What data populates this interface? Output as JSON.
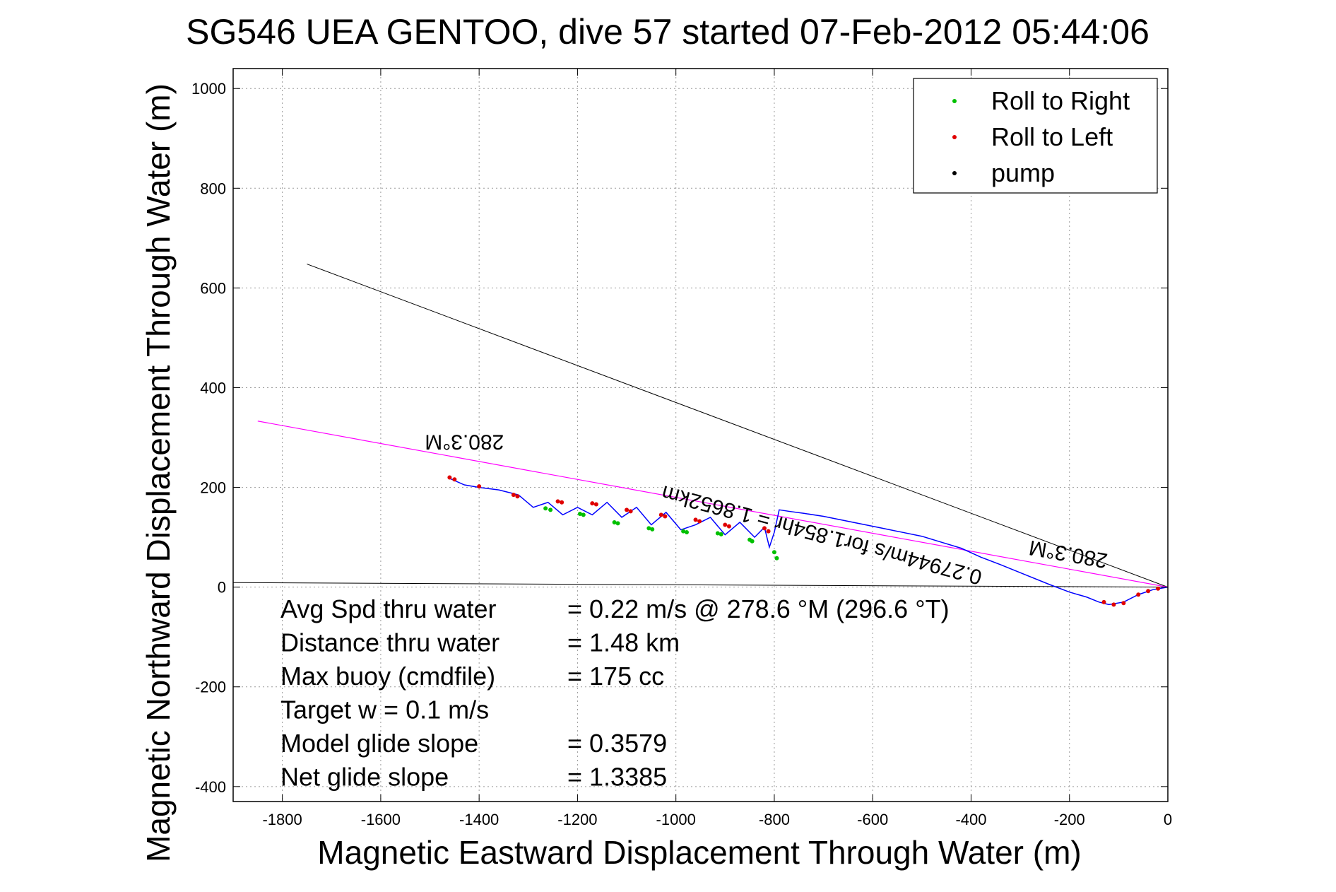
{
  "chart_data": {
    "type": "line",
    "title": "SG546 UEA GENTOO, dive 57 started 07-Feb-2012 05:44:06",
    "xlabel": "Magnetic Eastward Displacement Through Water (m)",
    "ylabel": "Magnetic Northward Displacement Through Water (m)",
    "xlim": [
      -1900,
      0
    ],
    "ylim": [
      -430,
      1040
    ],
    "xticks": [
      -1800,
      -1600,
      -1400,
      -1200,
      -1000,
      -800,
      -600,
      -400,
      -200,
      0
    ],
    "yticks": [
      -400,
      -200,
      0,
      200,
      400,
      600,
      800,
      1000
    ],
    "grid": true,
    "legend": {
      "position": "top-right",
      "entries": [
        {
          "label": "Roll to Right",
          "color": "#00c000"
        },
        {
          "label": "Roll to Left",
          "color": "#e00000"
        },
        {
          "label": "pump",
          "color": "#000000"
        }
      ]
    },
    "colors": {
      "track": "#0000ff",
      "heading_line": "#ff00ff",
      "current_line": "#000000",
      "zero_line": "#000000"
    },
    "lines": {
      "heading": {
        "x": [
          -1850,
          0
        ],
        "y": [
          333,
          0
        ],
        "label": "280.3°M"
      },
      "current": {
        "x": [
          -1750,
          0
        ],
        "y": [
          648,
          0
        ]
      },
      "zero": {
        "x": [
          -1900,
          0
        ],
        "y": [
          9,
          0
        ]
      }
    },
    "track": {
      "x": [
        0,
        -30,
        -60,
        -90,
        -120,
        -140,
        -165,
        -200,
        -240,
        -290,
        -340,
        -380,
        -420,
        -460,
        -500,
        -540,
        -580,
        -620,
        -660,
        -700,
        -740,
        -770,
        -790,
        -800,
        -810,
        -820,
        -840,
        -870,
        -900,
        -930,
        -960,
        -990,
        -1020,
        -1050,
        -1080,
        -1110,
        -1140,
        -1170,
        -1200,
        -1230,
        -1260,
        -1290,
        -1320,
        -1360,
        -1400,
        -1430,
        -1460
      ],
      "y": [
        0,
        -5,
        -15,
        -30,
        -35,
        -30,
        -20,
        -10,
        5,
        25,
        45,
        60,
        78,
        90,
        102,
        110,
        118,
        126,
        134,
        142,
        148,
        152,
        155,
        110,
        80,
        120,
        100,
        130,
        105,
        140,
        125,
        115,
        150,
        125,
        160,
        140,
        170,
        145,
        160,
        145,
        170,
        160,
        185,
        195,
        200,
        205,
        218
      ]
    },
    "roll_right": [
      {
        "x": -1265,
        "y": 158
      },
      {
        "x": -1255,
        "y": 155
      },
      {
        "x": -1195,
        "y": 147
      },
      {
        "x": -1188,
        "y": 145
      },
      {
        "x": -1125,
        "y": 130
      },
      {
        "x": -1118,
        "y": 128
      },
      {
        "x": -1055,
        "y": 118
      },
      {
        "x": -1048,
        "y": 116
      },
      {
        "x": -985,
        "y": 112
      },
      {
        "x": -978,
        "y": 110
      },
      {
        "x": -915,
        "y": 108
      },
      {
        "x": -908,
        "y": 106
      },
      {
        "x": -850,
        "y": 95
      },
      {
        "x": -845,
        "y": 92
      },
      {
        "x": -800,
        "y": 70
      },
      {
        "x": -795,
        "y": 58
      }
    ],
    "roll_left": [
      {
        "x": -1460,
        "y": 220
      },
      {
        "x": -1450,
        "y": 216
      },
      {
        "x": -1400,
        "y": 202
      },
      {
        "x": -1330,
        "y": 185
      },
      {
        "x": -1322,
        "y": 182
      },
      {
        "x": -1240,
        "y": 172
      },
      {
        "x": -1232,
        "y": 170
      },
      {
        "x": -1170,
        "y": 168
      },
      {
        "x": -1162,
        "y": 166
      },
      {
        "x": -1100,
        "y": 155
      },
      {
        "x": -1092,
        "y": 152
      },
      {
        "x": -1030,
        "y": 145
      },
      {
        "x": -1022,
        "y": 142
      },
      {
        "x": -960,
        "y": 135
      },
      {
        "x": -952,
        "y": 132
      },
      {
        "x": -900,
        "y": 125
      },
      {
        "x": -892,
        "y": 122
      },
      {
        "x": -820,
        "y": 118
      },
      {
        "x": -812,
        "y": 112
      },
      {
        "x": -130,
        "y": -30
      },
      {
        "x": -110,
        "y": -35
      },
      {
        "x": -90,
        "y": -32
      },
      {
        "x": -60,
        "y": -15
      },
      {
        "x": -40,
        "y": -8
      },
      {
        "x": -20,
        "y": -3
      }
    ],
    "annotations": [
      {
        "text": "280.3°M",
        "x": -1430,
        "y": 305,
        "rotate": 180
      },
      {
        "text": "0.27944m/s for1.854hr = 1.8652km",
        "x": -700,
        "y": 118,
        "rotate": 195
      },
      {
        "text": "280.3°M",
        "x": -200,
        "y": 80,
        "rotate": 190
      }
    ],
    "stats": [
      {
        "label": "Avg Spd thru water",
        "value": "=  0.22 m/s @ 278.6 °M (296.6 °T)"
      },
      {
        "label": "Distance thru water",
        "value": "=  1.48 km"
      },
      {
        "label": "Max buoy (cmdfile)",
        "value": "= 175 cc"
      },
      {
        "label": "Target w    = 0.1 m/s",
        "value": ""
      },
      {
        "label": "Model glide slope",
        "value": "= 0.3579"
      },
      {
        "label": "Net glide slope",
        "value": "= 1.3385"
      }
    ]
  }
}
